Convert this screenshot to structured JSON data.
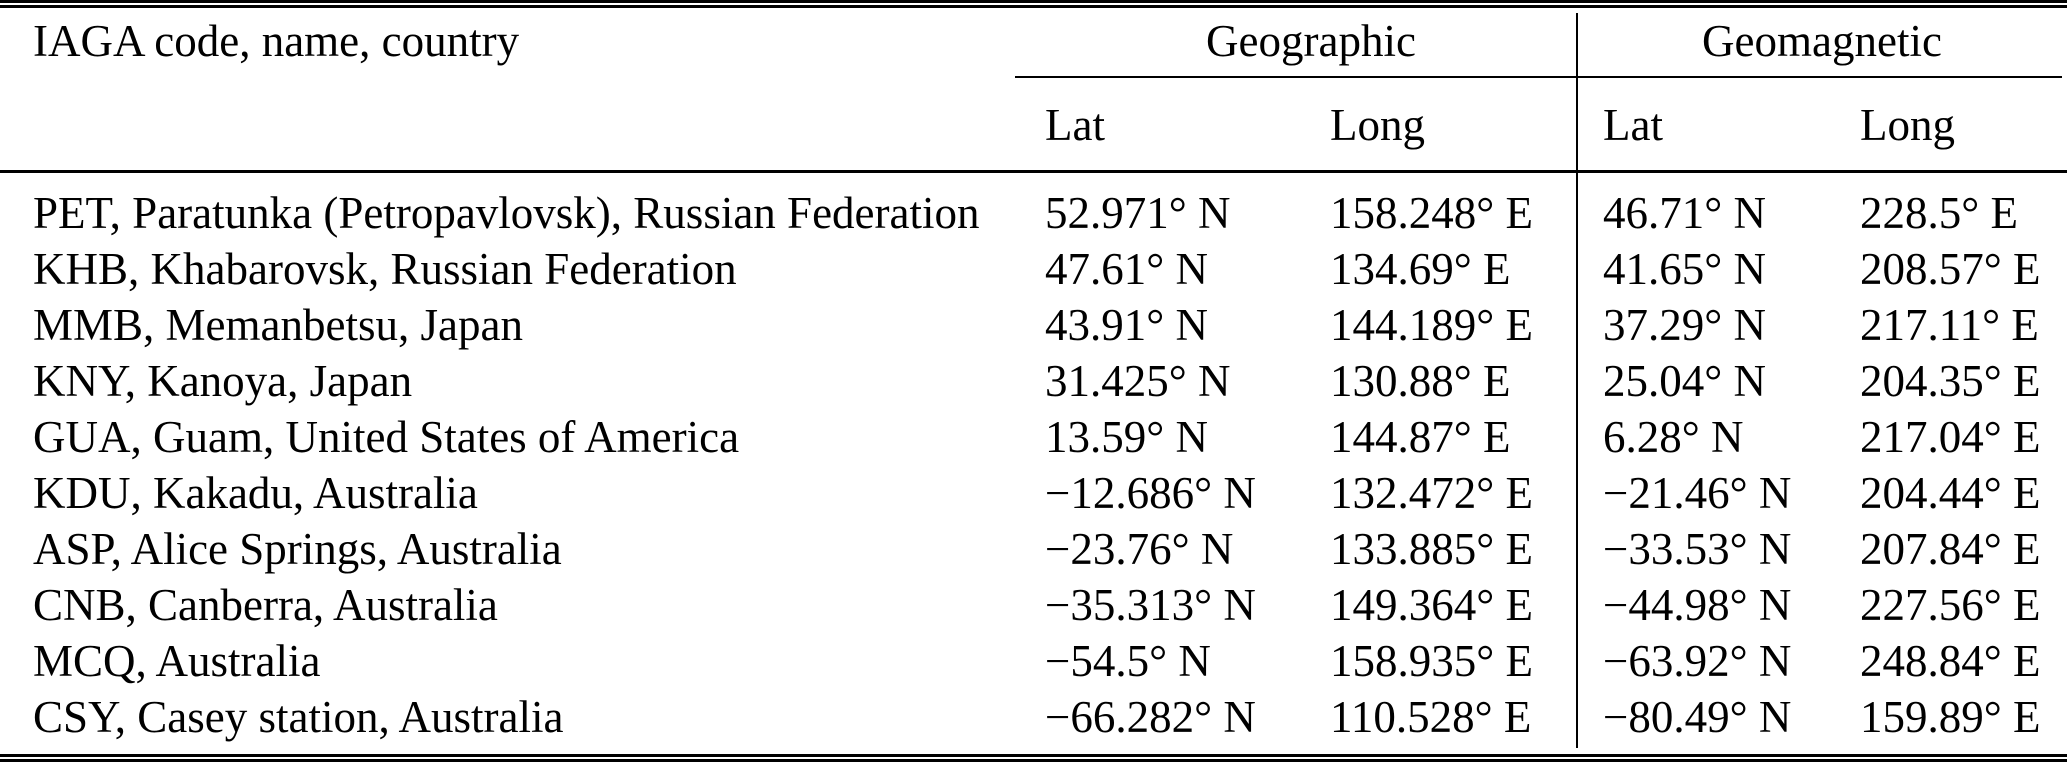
{
  "table": {
    "col1_header": "IAGA code, name, country",
    "group_headers": {
      "geographic": "Geographic",
      "geomagnetic": "Geomagnetic"
    },
    "sub_headers": {
      "geo_lat": "Lat",
      "geo_long": "Long",
      "mag_lat": "Lat",
      "mag_long": "Long"
    },
    "rows": [
      {
        "station": "PET, Paratunka (Petropavlovsk), Russian Federation",
        "geo_lat": "52.971° N",
        "geo_long": "158.248° E",
        "mag_lat": "46.71° N",
        "mag_long": "228.5° E"
      },
      {
        "station": "KHB, Khabarovsk, Russian Federation",
        "geo_lat": "47.61° N",
        "geo_long": "134.69° E",
        "mag_lat": "41.65° N",
        "mag_long": "208.57° E"
      },
      {
        "station": "MMB, Memanbetsu, Japan",
        "geo_lat": "43.91° N",
        "geo_long": "144.189° E",
        "mag_lat": "37.29° N",
        "mag_long": "217.11° E"
      },
      {
        "station": "KNY, Kanoya, Japan",
        "geo_lat": "31.425° N",
        "geo_long": "130.88° E",
        "mag_lat": "25.04° N",
        "mag_long": "204.35° E"
      },
      {
        "station": "GUA, Guam, United States of America",
        "geo_lat": "13.59° N",
        "geo_long": "144.87° E",
        "mag_lat": "6.28° N",
        "mag_long": "217.04° E"
      },
      {
        "station": "KDU, Kakadu, Australia",
        "geo_lat": "−12.686° N",
        "geo_long": "132.472° E",
        "mag_lat": "−21.46° N",
        "mag_long": "204.44° E"
      },
      {
        "station": "ASP, Alice Springs, Australia",
        "geo_lat": "−23.76° N",
        "geo_long": "133.885° E",
        "mag_lat": "−33.53° N",
        "mag_long": "207.84° E"
      },
      {
        "station": "CNB, Canberra, Australia",
        "geo_lat": "−35.313° N",
        "geo_long": "149.364° E",
        "mag_lat": "−44.98° N",
        "mag_long": "227.56° E"
      },
      {
        "station": "MCQ, Australia",
        "geo_lat": "−54.5° N",
        "geo_long": "158.935° E",
        "mag_lat": "−63.92° N",
        "mag_long": "248.84° E"
      },
      {
        "station": "CSY, Casey station, Australia",
        "geo_lat": "−66.282° N",
        "geo_long": "110.528° E",
        "mag_lat": "−80.49° N",
        "mag_long": "159.89° E"
      }
    ],
    "rule_color": "#000000",
    "background_color": "#ffffff"
  }
}
